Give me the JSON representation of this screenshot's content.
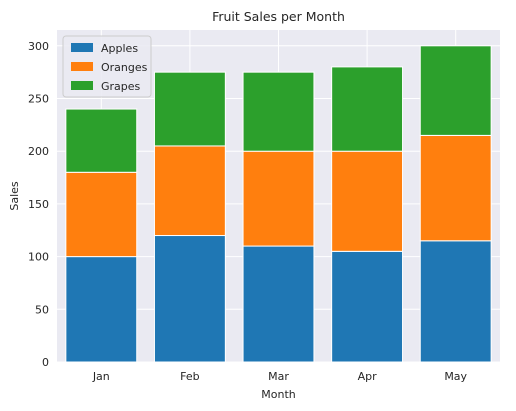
{
  "chart_data": {
    "type": "bar",
    "stacked": true,
    "title": "Fruit Sales per Month",
    "xlabel": "Month",
    "ylabel": "Sales",
    "categories": [
      "Jan",
      "Feb",
      "Mar",
      "Apr",
      "May"
    ],
    "series": [
      {
        "name": "Apples",
        "values": [
          100,
          120,
          110,
          105,
          115
        ],
        "color": "#1f77b4"
      },
      {
        "name": "Oranges",
        "values": [
          80,
          85,
          90,
          95,
          100
        ],
        "color": "#ff7f0e"
      },
      {
        "name": "Grapes",
        "values": [
          60,
          70,
          75,
          80,
          85
        ],
        "color": "#2ca02c"
      }
    ],
    "ylim": [
      0,
      315
    ],
    "yticks": [
      0,
      50,
      100,
      150,
      200,
      250,
      300
    ],
    "grid": true,
    "legend_position": "upper-left",
    "background_color": "#eaeaf2",
    "grid_color": "#ffffff"
  }
}
